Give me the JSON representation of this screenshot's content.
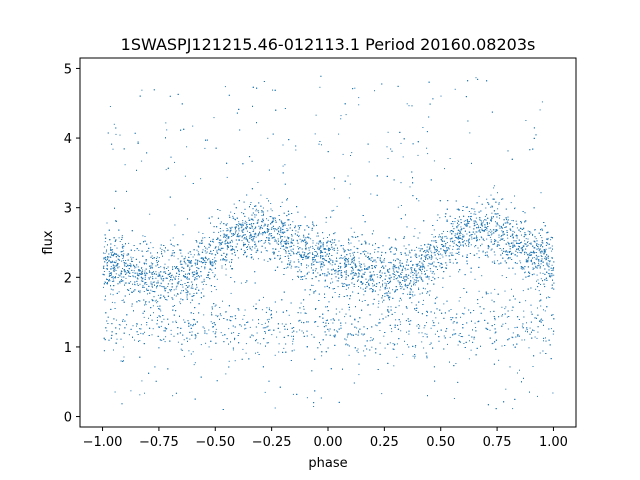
{
  "chart_data": {
    "type": "scatter",
    "title": "1SWASPJ121215.46-012113.1 Period 20160.08203s",
    "xlabel": "phase",
    "ylabel": "flux",
    "xlim": [
      -1.1,
      1.1
    ],
    "ylim": [
      -0.15,
      5.15
    ],
    "x_ticks": [
      -1.0,
      -0.75,
      -0.5,
      -0.25,
      0.0,
      0.25,
      0.5,
      0.75,
      1.0
    ],
    "x_tick_labels": [
      "−1.00",
      "−0.75",
      "−0.50",
      "−0.25",
      "0.00",
      "0.25",
      "0.50",
      "0.75",
      "1.00"
    ],
    "y_ticks": [
      0,
      1,
      2,
      3,
      4,
      5
    ],
    "y_tick_labels": [
      "0",
      "1",
      "2",
      "3",
      "4",
      "5"
    ],
    "grid": false,
    "marker_color": "#1f77b4",
    "phase_range": [
      -1.0,
      1.0
    ],
    "trend": {
      "phase": [
        0.0,
        0.1,
        0.2,
        0.3,
        0.4,
        0.5,
        0.6,
        0.7,
        0.8,
        0.9,
        1.0
      ],
      "flux": [
        2.25,
        2.15,
        2.05,
        2.05,
        2.1,
        2.35,
        2.65,
        2.7,
        2.55,
        2.35,
        2.2
      ]
    },
    "main_spread": 0.22,
    "secondary_band_flux": 1.3,
    "outlier_flux_range": [
      0.1,
      4.9
    ]
  }
}
